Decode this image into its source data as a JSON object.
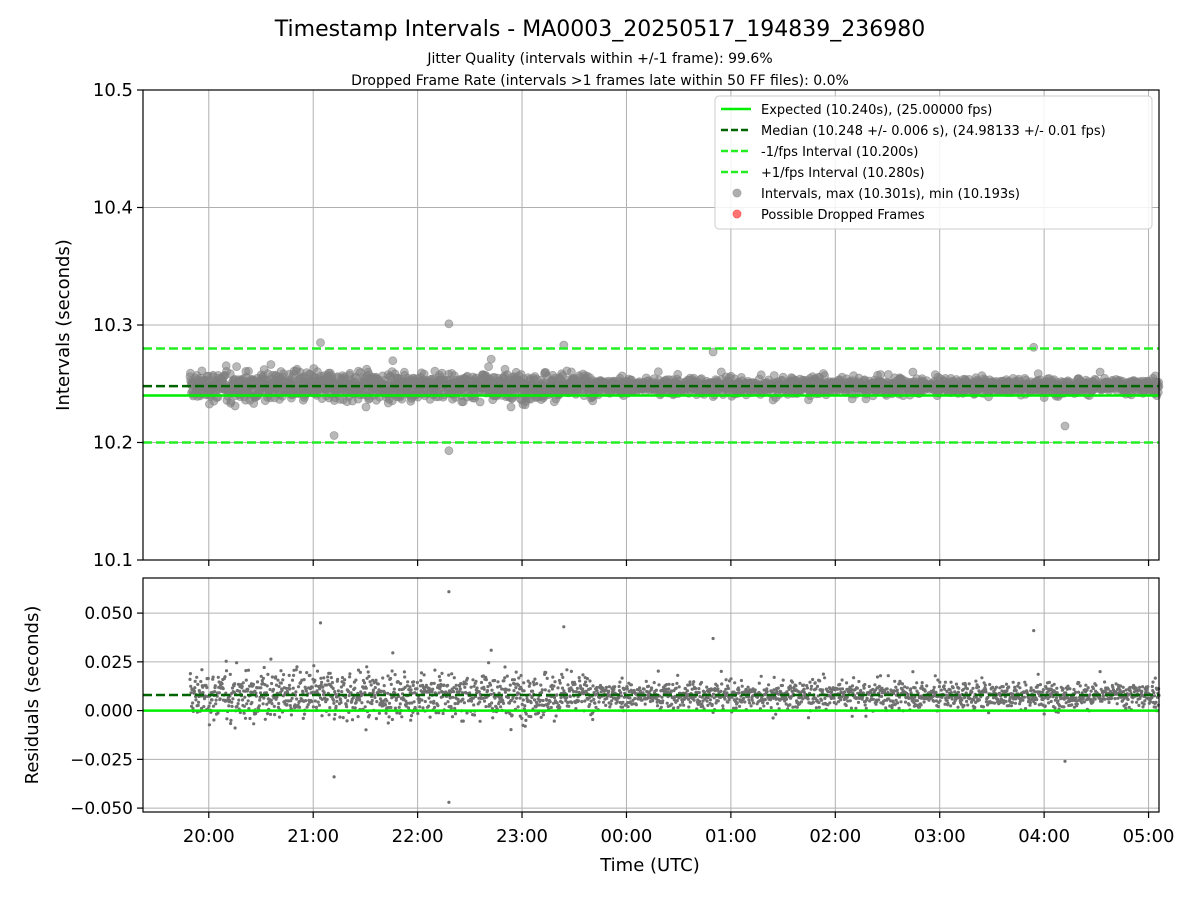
{
  "title": "Timestamp Intervals - MA0003_20250517_194839_236980",
  "subtitle_1": "Jitter Quality (intervals within +/-1 frame): 99.6%",
  "subtitle_2": "Dropped Frame Rate (intervals >1 frames late within 50 FF files): 0.0%",
  "colors": {
    "expected": "#00ee00",
    "median": "#006400",
    "bound": "#22ee22",
    "points": "#808080",
    "dropped": "#ff5a5a",
    "grid": "#b0b0b0"
  },
  "chart_data": [
    {
      "type": "scatter",
      "name": "intervals",
      "ylabel": "Intervals (seconds)",
      "ylim": [
        10.1,
        10.5
      ],
      "yticks": [
        "10.1",
        "10.2",
        "10.3",
        "10.4",
        "10.5"
      ],
      "grid": true,
      "legend_placement": "top-right",
      "reference_lines": {
        "expected": 10.24,
        "median": 10.248,
        "lower_bound": 10.2,
        "upper_bound": 10.28
      },
      "legend": [
        {
          "label": "Expected (10.240s), (25.00000 fps)",
          "style": "solid",
          "color": "#00ee00"
        },
        {
          "label": "Median (10.248 +/- 0.006 s), (24.98133 +/- 0.01 fps)",
          "style": "dashed",
          "color": "#006400"
        },
        {
          "label": "-1/fps Interval (10.200s)",
          "style": "dashed",
          "color": "#22ee22"
        },
        {
          "label": "+1/fps Interval (10.280s)",
          "style": "dashed",
          "color": "#22ee22"
        },
        {
          "label": "Intervals, max (10.301s), min (10.193s)",
          "style": "marker",
          "color": "#a0a0a0"
        },
        {
          "label": "Possible Dropped Frames",
          "style": "marker",
          "color": "#ff5a5a"
        }
      ],
      "summary": {
        "max": 10.301,
        "min": 10.193,
        "median": 10.248,
        "count_approx": 2600
      },
      "time_range_utc_hours": [
        19.82,
        29.1
      ]
    },
    {
      "type": "scatter",
      "name": "residuals",
      "xlabel": "Time (UTC)",
      "ylabel": "Residuals (seconds)",
      "xlim_utc_hours": [
        19.37,
        29.1
      ],
      "ylim": [
        -0.052,
        0.068
      ],
      "xticks": [
        "20:00",
        "21:00",
        "22:00",
        "23:00",
        "00:00",
        "01:00",
        "02:00",
        "03:00",
        "04:00",
        "05:00"
      ],
      "yticks": [
        "−0.050",
        "−0.025",
        "0.000",
        "0.025",
        "0.050"
      ],
      "grid": true,
      "reference_lines": {
        "zero": 0.0,
        "median_residual": 0.008
      },
      "summary": {
        "max": 0.061,
        "min": -0.047
      }
    }
  ]
}
